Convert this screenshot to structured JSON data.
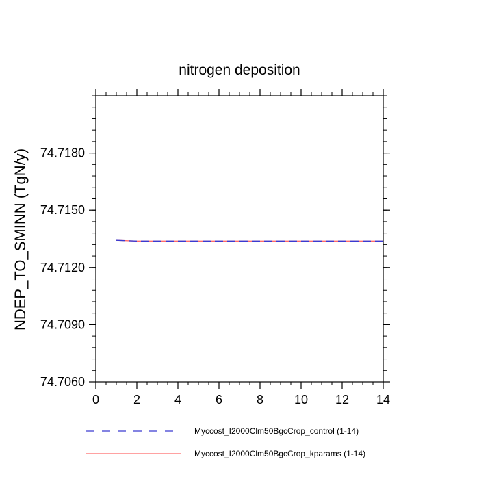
{
  "chart_data": {
    "type": "line",
    "title": "nitrogen deposition",
    "xlabel": "",
    "ylabel": "NDEP_TO_SMINN  (TgN/y)",
    "xlim": [
      0,
      14
    ],
    "ylim": [
      74.706,
      74.721
    ],
    "x_ticks": [
      "0",
      "2",
      "4",
      "6",
      "8",
      "10",
      "12",
      "14"
    ],
    "y_ticks": [
      "74.7060",
      "74.7090",
      "74.7120",
      "74.7150",
      "74.7180"
    ],
    "x_tick_values": [
      0,
      2,
      4,
      6,
      8,
      10,
      12,
      14
    ],
    "y_tick_values": [
      74.706,
      74.709,
      74.712,
      74.715,
      74.718
    ],
    "grid": false,
    "legend_position": "bottom",
    "series": [
      {
        "name": "Myccost_I2000Clm50BgcCrop_control (1-14)",
        "color": "#3a3ad0",
        "style": "dashed",
        "x": [
          1,
          2,
          3,
          4,
          5,
          6,
          7,
          8,
          9,
          10,
          11,
          12,
          13,
          14
        ],
        "y": [
          74.71342,
          74.71338,
          74.71338,
          74.71338,
          74.71338,
          74.71338,
          74.71338,
          74.71338,
          74.71338,
          74.71338,
          74.71338,
          74.71338,
          74.71338,
          74.71338
        ]
      },
      {
        "name": "Myccost_I2000Clm50BgcCrop_kparams (1-14)",
        "color": "#ff6b6b",
        "style": "solid",
        "x": [
          1,
          2,
          3,
          4,
          5,
          6,
          7,
          8,
          9,
          10,
          11,
          12,
          13,
          14
        ],
        "y": [
          74.71342,
          74.71338,
          74.71338,
          74.71338,
          74.71338,
          74.71338,
          74.71338,
          74.71338,
          74.71338,
          74.71338,
          74.71338,
          74.71338,
          74.71338,
          74.71338
        ]
      }
    ]
  }
}
